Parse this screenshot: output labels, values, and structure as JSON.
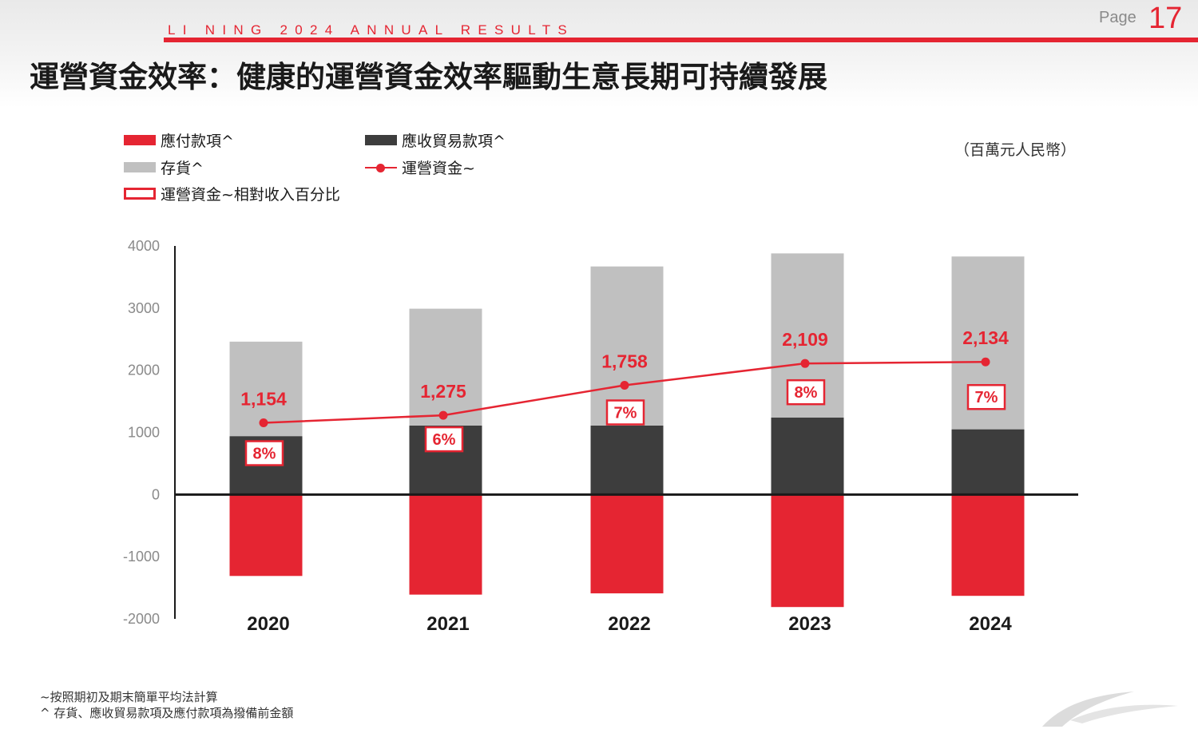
{
  "header": {
    "brand_line": "LI NING 2024 ANNUAL RESULTS",
    "page_label": "Page",
    "page_number": "17",
    "title": "運營資金效率：健康的運營資金效率驅動生意長期可持續發展"
  },
  "unit_label": "（百萬元人民幣）",
  "legend": {
    "payables": "應付款項^",
    "receivables": "應收貿易款項^",
    "inventory": "存貨^",
    "working_capital": "運營資金~",
    "working_capital_pct": "運營資金~相對收入百分比"
  },
  "colors": {
    "accent": "#e52532",
    "receivables": "#3d3d3d",
    "inventory": "#c0c0c0",
    "text": "#1a1a1a"
  },
  "chart_data": {
    "type": "bar",
    "stacked": true,
    "categories": [
      "2020",
      "2021",
      "2022",
      "2023",
      "2024"
    ],
    "ylim": [
      -2000,
      4000
    ],
    "yticks": [
      {
        "value": 4000,
        "label": "4000"
      },
      {
        "value": 3000,
        "label": "3000"
      },
      {
        "value": 2000,
        "label": "2000"
      },
      {
        "value": 1000,
        "label": "1000"
      },
      {
        "value": 0,
        "label": "0"
      },
      {
        "value": -1000,
        "label": "-1000"
      },
      {
        "value": -2000,
        "label": "-2000"
      }
    ],
    "series": [
      {
        "name": "應收貿易款項^",
        "values": [
          940,
          1110,
          1110,
          1240,
          1050
        ]
      },
      {
        "name": "存貨^",
        "values": [
          1520,
          1880,
          2560,
          2640,
          2780
        ]
      },
      {
        "name": "應付款項^",
        "values": [
          -1310,
          -1610,
          -1590,
          -1810,
          -1630
        ]
      }
    ],
    "line": {
      "name": "運營資金~",
      "values": [
        1154,
        1275,
        1758,
        2109,
        2134
      ],
      "labels": [
        "1,154",
        "1,275",
        "1,758",
        "2,109",
        "2,134"
      ]
    },
    "pct_labels": [
      "8%",
      "6%",
      "7%",
      "8%",
      "7%"
    ],
    "grid": false,
    "legend_position": "top-left"
  },
  "footnotes": [
    "~按照期初及期末簡單平均法計算",
    "^ 存貨、應收貿易款項及應付款項為撥備前金額"
  ]
}
